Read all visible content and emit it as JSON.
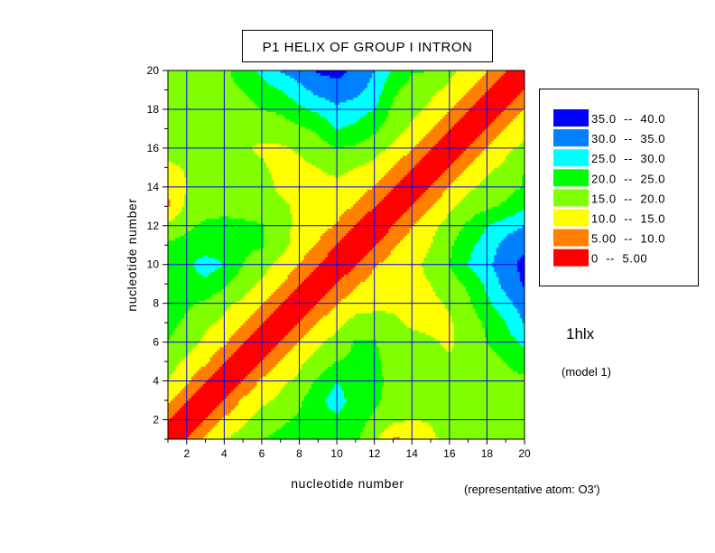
{
  "chart_data": {
    "type": "heatmap",
    "subtype": "filled-contour",
    "title": "P1 HELIX OF GROUP I INTRON",
    "xlabel": "nucleotide number",
    "ylabel": "nucleotide number",
    "xlim": [
      1,
      20
    ],
    "ylim": [
      1,
      20
    ],
    "xticks": [
      2,
      4,
      6,
      8,
      10,
      12,
      14,
      16,
      18,
      20
    ],
    "yticks": [
      2,
      4,
      6,
      8,
      10,
      12,
      14,
      16,
      18,
      20
    ],
    "grid": true,
    "legend_position": "right",
    "levels": [
      {
        "label": "35.0  --  40.0",
        "min": 35,
        "max": 40,
        "color": "#0000ff"
      },
      {
        "label": "30.0  --  35.0",
        "min": 30,
        "max": 35,
        "color": "#0080ff"
      },
      {
        "label": "25.0  --  30.0",
        "min": 25,
        "max": 30,
        "color": "#00ffff"
      },
      {
        "label": "20.0  --  25.0",
        "min": 20,
        "max": 25,
        "color": "#00ff00"
      },
      {
        "label": "15.0  --  20.0",
        "min": 15,
        "max": 20,
        "color": "#80ff00"
      },
      {
        "label": "10.0  --  15.0",
        "min": 10,
        "max": 15,
        "color": "#ffff00"
      },
      {
        "label": "5.00  --  10.0",
        "min": 5,
        "max": 10,
        "color": "#ff8000"
      },
      {
        "label": "0  --  5.00",
        "min": 0,
        "max": 5,
        "color": "#ff0000"
      }
    ],
    "symmetric": true,
    "diagonal_value": 0,
    "upper_triangle_rows_note": "row k lists values at (x=k+1..20, y=k)",
    "upper_triangle": [
      [
        5.5,
        11,
        15,
        17,
        20,
        21.5,
        22,
        22,
        22,
        21,
        16,
        9.5,
        9.8,
        14,
        16.5,
        17,
        18,
        18,
        19
      ],
      [
        5.5,
        11,
        14,
        17,
        19,
        21,
        23,
        24,
        22,
        19,
        16,
        15,
        15.5,
        17,
        18,
        18,
        18,
        19
      ],
      [
        5.5,
        11,
        14,
        16,
        19,
        24,
        27,
        23,
        21,
        18,
        17,
        17,
        17,
        18,
        18,
        18.5,
        19
      ],
      [
        5.5,
        11,
        14,
        16,
        21,
        25,
        22,
        21,
        19,
        18,
        18,
        18,
        18,
        18.5,
        19,
        19
      ],
      [
        5.5,
        10.5,
        14,
        17,
        20,
        21,
        21,
        18,
        16.5,
        15.5,
        15.5,
        15.2,
        18,
        20,
        22
      ],
      [
        5.5,
        10.5,
        14,
        17,
        20.5,
        20.5,
        17,
        16,
        15.5,
        14.5,
        16.5,
        20,
        23,
        26
      ],
      [
        5.5,
        10.5,
        13.5,
        17,
        16.5,
        15.5,
        14.5,
        14,
        14.5,
        17,
        21,
        25,
        30.5
      ],
      [
        5.5,
        10,
        12.5,
        14,
        14.5,
        14,
        14,
        15.5,
        19,
        24,
        28,
        33
      ],
      [
        5.5,
        9.5,
        12,
        13,
        13.5,
        15,
        17.5,
        21,
        26,
        32,
        35.5
      ],
      [
        5,
        9.5,
        12,
        14,
        16,
        20,
        25,
        29,
        33,
        36.5
      ],
      [
        5,
        9.5,
        12.5,
        15,
        19,
        24,
        27,
        32,
        34
      ],
      [
        5.2,
        10,
        13.5,
        17,
        21,
        25,
        28,
        30
      ],
      [
        5.2,
        10,
        14,
        17,
        19,
        21,
        24.5
      ],
      [
        5.3,
        10.5,
        14,
        16.5,
        18,
        20.5
      ],
      [
        5.3,
        10.5,
        14,
        16,
        20
      ],
      [
        5.5,
        10.5,
        14,
        16
      ],
      [
        5.5,
        10.5,
        14
      ],
      [
        5.5,
        10.5
      ],
      [
        5.5
      ]
    ],
    "annotations": [
      "1hlx",
      "(model 1)",
      "(representative atom: O3')"
    ]
  }
}
